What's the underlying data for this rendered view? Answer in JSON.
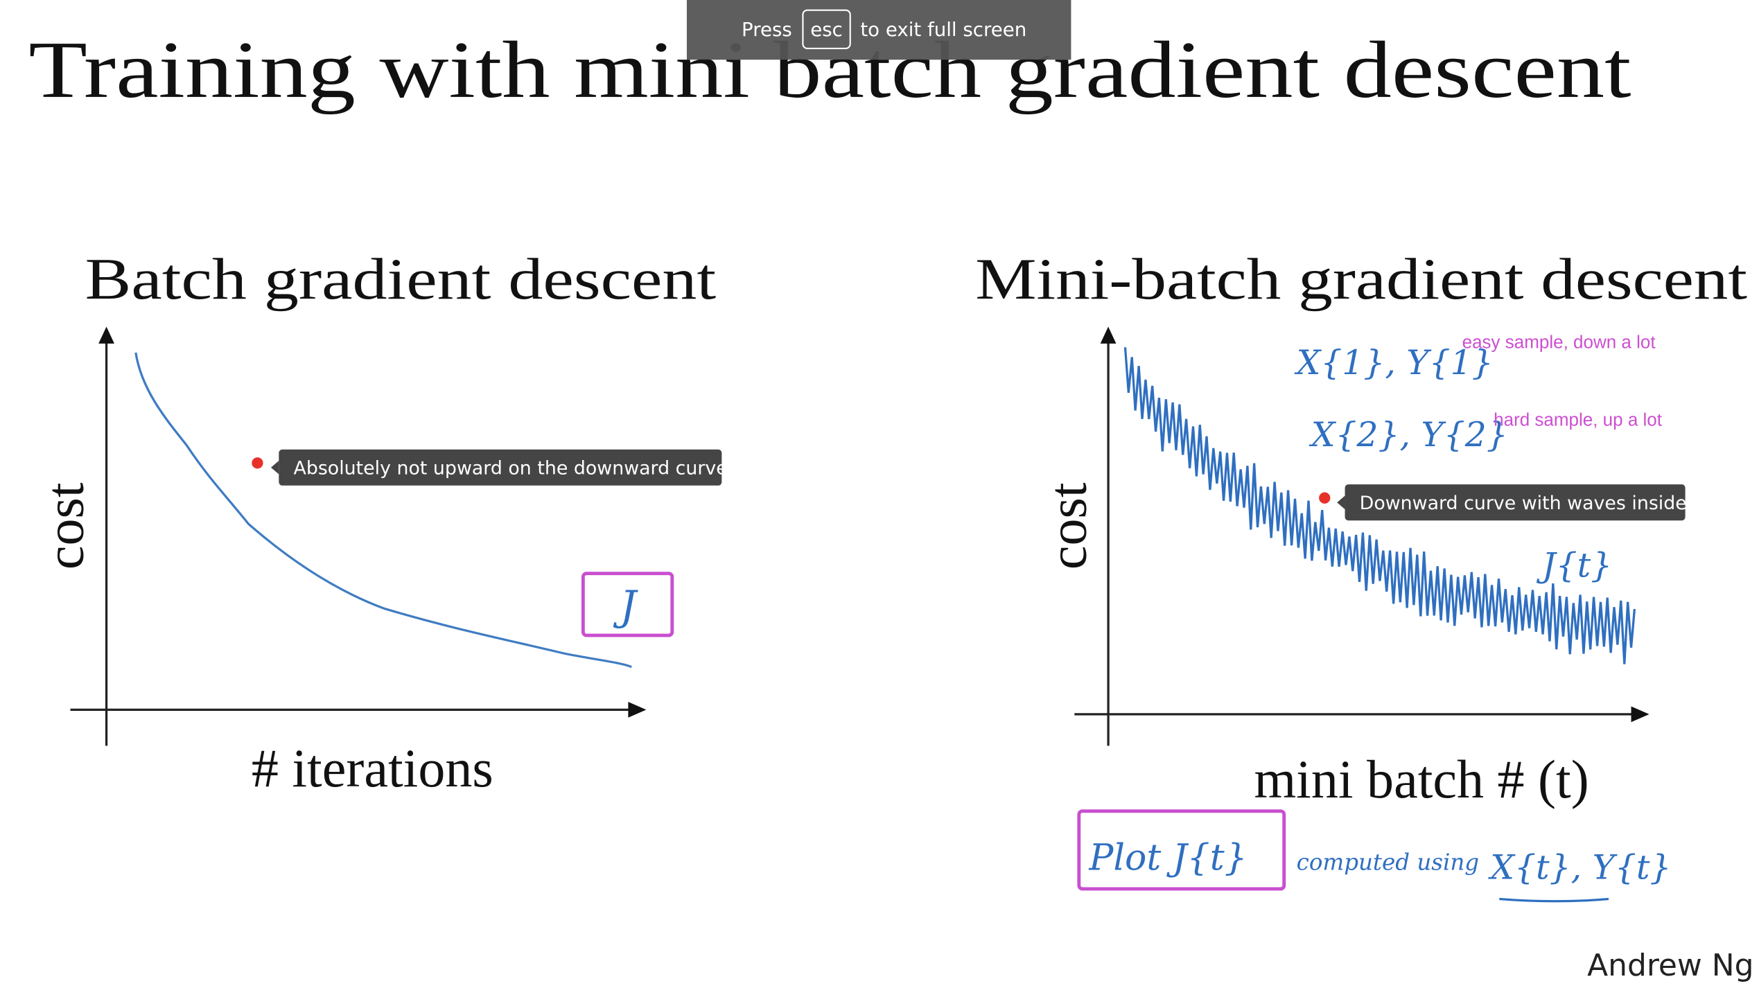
{
  "fullscreen_notice": {
    "before": "Press",
    "key": "esc",
    "after": "to exit full screen"
  },
  "slide": {
    "title": "Training with mini batch gradient descent",
    "left": {
      "title": "Batch gradient descent",
      "y_label": "cost",
      "x_label": "# iterations",
      "note": "J",
      "tooltip": "Absolutely not upward on the downward curve"
    },
    "right": {
      "title": "Mini-batch gradient descent",
      "y_label": "cost",
      "x_label": "mini batch # (t)",
      "notes": [
        "X{1}, Y{1}",
        "X{2}, Y{2}",
        "J{t}"
      ],
      "comments": [
        "easy sample, down a lot",
        "hard sample, up a lot"
      ],
      "tooltip": "Downward curve with waves inside",
      "plot_box": "Plot J{t}",
      "computed": "computed using",
      "computed_vars": "X{t}, Y{t}"
    },
    "author": "Andrew Ng"
  }
}
